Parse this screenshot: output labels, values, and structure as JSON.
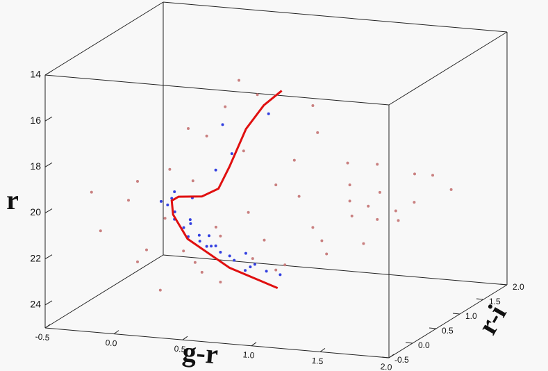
{
  "chart_data": {
    "type": "scatter3d",
    "xlabel": "g-r",
    "ylabel": "r",
    "zlabel": "r-i",
    "xlim": [
      -0.5,
      2.0
    ],
    "ylim": [
      14,
      25
    ],
    "zlim": [
      -0.5,
      2.0
    ],
    "xticks": [
      {
        "value": -0.5,
        "label": "-0.5"
      },
      {
        "value": 0,
        "label": "0.0"
      },
      {
        "value": 0.5,
        "label": "0.5"
      },
      {
        "value": 1,
        "label": "1.0"
      },
      {
        "value": 1.5,
        "label": "1.5"
      },
      {
        "value": 2,
        "label": "2.0"
      }
    ],
    "yticks": [
      14,
      16,
      18,
      20,
      22,
      24
    ],
    "zticks": [
      {
        "value": -0.5,
        "label": "-0.5"
      },
      {
        "value": 0,
        "label": "0.0"
      },
      {
        "value": 0.5,
        "label": "0.5"
      },
      {
        "value": 1,
        "label": "1.0"
      },
      {
        "value": 1.5,
        "label": "1.5"
      },
      {
        "value": 2,
        "label": "2.0"
      }
    ],
    "series": [
      {
        "type": "scatter",
        "color": "#c98080",
        "x": [
          0.3,
          0.5,
          0.2,
          0.7,
          0.9,
          0.1,
          0.4,
          0.0,
          0.6,
          1.0,
          1.2,
          1.3,
          1.4,
          1.25,
          1.35,
          1.5,
          1.1,
          1.45,
          1.2,
          1.6,
          0.8,
          0.6,
          0.4,
          0.5,
          0.9,
          1.0,
          0.3,
          0.7,
          0.2,
          1.4,
          1.7,
          0.0,
          -0.2,
          -0.1,
          0.5,
          0.8,
          1.1,
          0.3,
          0.6,
          1.3,
          1.5,
          0.9,
          0.2,
          1.0,
          1.8,
          -0.3,
          0.45,
          0.75,
          1.15,
          0.35
        ],
        "y": [
          22.0,
          21.5,
          20.5,
          22.5,
          22.8,
          21.8,
          23.0,
          22.5,
          20.8,
          21.5,
          20.5,
          20.8,
          21.2,
          21.0,
          20.3,
          20.9,
          21.9,
          21.6,
          19.8,
          20.6,
          19.5,
          18.0,
          17.2,
          16.0,
          18.5,
          17.5,
          16.8,
          15.5,
          18.5,
          18.8,
          19.5,
          19.0,
          21.0,
          20.0,
          23.5,
          23.2,
          22.6,
          19.2,
          14.8,
          22.3,
          19.8,
          20.2,
          23.5,
          16.2,
          20.2,
          19.5,
          21.2,
          21.8,
          19.0,
          22.6
        ],
        "z": [
          0.1,
          0.3,
          0.0,
          0.4,
          0.5,
          -0.1,
          0.2,
          0.0,
          0.6,
          0.8,
          1.0,
          1.1,
          1.0,
          0.9,
          1.2,
          1.1,
          0.7,
          1.3,
          1.0,
          1.2,
          0.6,
          0.5,
          0.3,
          0.4,
          0.7,
          0.9,
          0.2,
          0.5,
          0.1,
          1.0,
          1.3,
          0.0,
          -0.2,
          0.1,
          0.3,
          0.6,
          0.8,
          0.3,
          0.4,
          1.0,
          1.5,
          0.8,
          -0.1,
          0.8,
          1.4,
          -0.1,
          0.35,
          0.5,
          1.1,
          0.2
        ]
      },
      {
        "type": "scatter",
        "color": "#3340e0",
        "x": [
          0.15,
          0.2,
          0.25,
          0.3,
          0.35,
          0.4,
          0.5,
          0.55,
          0.6,
          0.7,
          0.8,
          0.9,
          0.18,
          0.22,
          0.3,
          0.45,
          0.65,
          0.75,
          0.28,
          0.38,
          0.85,
          0.55,
          0.5,
          0.6,
          0.2,
          0.4,
          0.5,
          0.68,
          0.33,
          0.12
        ],
        "y": [
          20.2,
          20.8,
          21.2,
          21.5,
          21.8,
          22.0,
          22.2,
          22.4,
          22.5,
          22.8,
          23.0,
          23.1,
          19.9,
          20.4,
          21.0,
          21.9,
          22.3,
          22.6,
          20.9,
          21.4,
          16.0,
          16.5,
          18.5,
          17.8,
          19.6,
          21.6,
          21.8,
          22.9,
          19.8,
          20.0
        ],
        "z": [
          0.2,
          0.2,
          0.25,
          0.2,
          0.3,
          0.3,
          0.3,
          0.35,
          0.3,
          0.35,
          0.4,
          0.4,
          0.2,
          0.15,
          0.25,
          0.25,
          0.4,
          0.3,
          0.3,
          0.2,
          0.3,
          0.2,
          0.2,
          0.25,
          0.2,
          0.35,
          0.2,
          0.3,
          0.2,
          0.15
        ]
      },
      {
        "type": "line",
        "color": "#e01010",
        "x": [
          0.95,
          0.6,
          0.295,
          0.19,
          0.18,
          0.23,
          0.4,
          0.52,
          0.6,
          0.72,
          0.85,
          0.98
        ],
        "y": [
          23.4,
          22.7,
          21.6,
          20.6,
          20.0,
          19.8,
          19.7,
          19.3,
          18.3,
          16.6,
          15.5,
          14.8
        ],
        "z": [
          0.2,
          0.2,
          0.2,
          0.2,
          0.2,
          0.2,
          0.2,
          0.2,
          0.2,
          0.2,
          0.2,
          0.2
        ]
      }
    ]
  }
}
